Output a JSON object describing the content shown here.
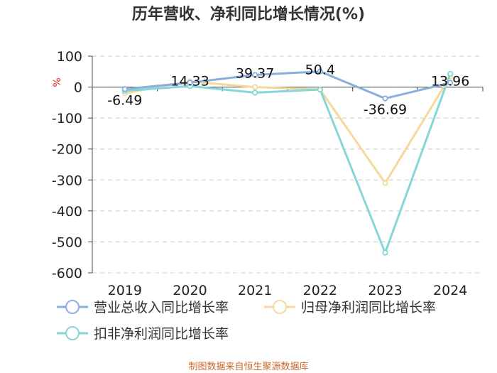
{
  "chart_data": {
    "type": "line",
    "title": "历年营收、净利同比增长情况(%)",
    "ylabel": "%",
    "categories": [
      "2019",
      "2020",
      "2021",
      "2022",
      "2023",
      "2024"
    ],
    "ylim": [
      -600,
      100
    ],
    "yticks": [
      100,
      0,
      -100,
      -200,
      -300,
      -400,
      -500,
      -600
    ],
    "grid": true,
    "legend_position": "bottom",
    "source": "制图数据来自恒生聚源数据库",
    "series": [
      {
        "name": "营业总收入同比增长率",
        "color": "#8aaedd",
        "values": [
          -6.49,
          14.33,
          39.37,
          50.4,
          -36.69,
          13.96
        ],
        "labels": [
          "-6.49",
          "14.33",
          "39.37",
          "50.4",
          "-36.69",
          "13.96"
        ]
      },
      {
        "name": "归母净利润同比增长率",
        "color": "#f5d89a",
        "values": [
          -20,
          18,
          0,
          -8,
          -310,
          35
        ]
      },
      {
        "name": "扣非净利润同比增长率",
        "color": "#86d6d8",
        "values": [
          -12,
          3,
          -18,
          -8,
          -535,
          43
        ]
      }
    ]
  }
}
